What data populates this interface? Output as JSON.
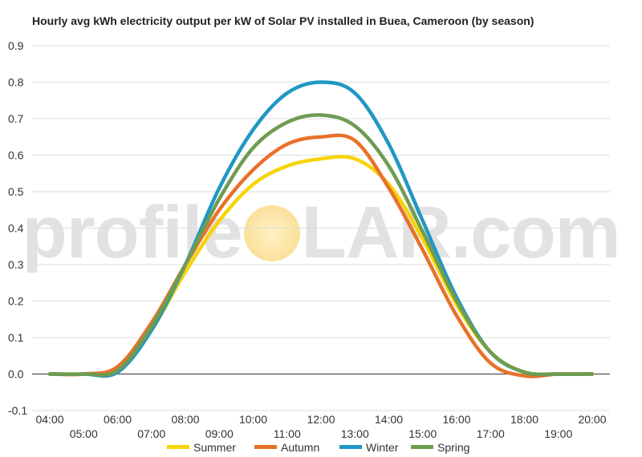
{
  "chart_data": {
    "type": "line",
    "title": "Hourly avg kWh electricity output per kW of Solar PV installed in Buea, Cameroon (by season)",
    "xlabel": "",
    "ylabel": "",
    "ylim": [
      -0.1,
      0.9
    ],
    "yticks": [
      "0.9",
      "0.8",
      "0.7",
      "0.6",
      "0.5",
      "0.4",
      "0.3",
      "0.2",
      "0.1",
      "0.0",
      "-0.1"
    ],
    "x": [
      "04:00",
      "05:00",
      "06:00",
      "07:00",
      "08:00",
      "09:00",
      "10:00",
      "11:00",
      "12:00",
      "13:00",
      "14:00",
      "15:00",
      "16:00",
      "17:00",
      "18:00",
      "19:00",
      "20:00"
    ],
    "grid": true,
    "legend_position": "bottom",
    "series": [
      {
        "name": "Summer",
        "color": "#f7d308",
        "values": [
          0.0,
          0.0,
          0.005,
          0.12,
          0.28,
          0.42,
          0.52,
          0.57,
          0.59,
          0.59,
          0.52,
          0.37,
          0.19,
          0.06,
          0.005,
          0.0,
          0.0
        ]
      },
      {
        "name": "Autumn",
        "color": "#e8712a",
        "values": [
          0.0,
          0.0,
          0.02,
          0.14,
          0.3,
          0.45,
          0.56,
          0.63,
          0.65,
          0.64,
          0.51,
          0.34,
          0.16,
          0.03,
          -0.005,
          0.0,
          0.0
        ]
      },
      {
        "name": "Winter",
        "color": "#2097c4",
        "values": [
          0.0,
          0.0,
          0.005,
          0.12,
          0.3,
          0.51,
          0.67,
          0.77,
          0.8,
          0.77,
          0.63,
          0.42,
          0.21,
          0.06,
          0.005,
          0.0,
          0.0
        ]
      },
      {
        "name": "Spring",
        "color": "#6f9c51",
        "values": [
          0.0,
          0.0,
          0.01,
          0.13,
          0.3,
          0.48,
          0.62,
          0.69,
          0.71,
          0.68,
          0.57,
          0.39,
          0.2,
          0.06,
          0.005,
          0.0,
          0.0
        ]
      }
    ]
  },
  "watermark": {
    "left": "profile",
    "right": "LAR.com"
  },
  "colors": {
    "grid": "#dddddd",
    "zero_line": "#333333",
    "text": "#333333"
  }
}
